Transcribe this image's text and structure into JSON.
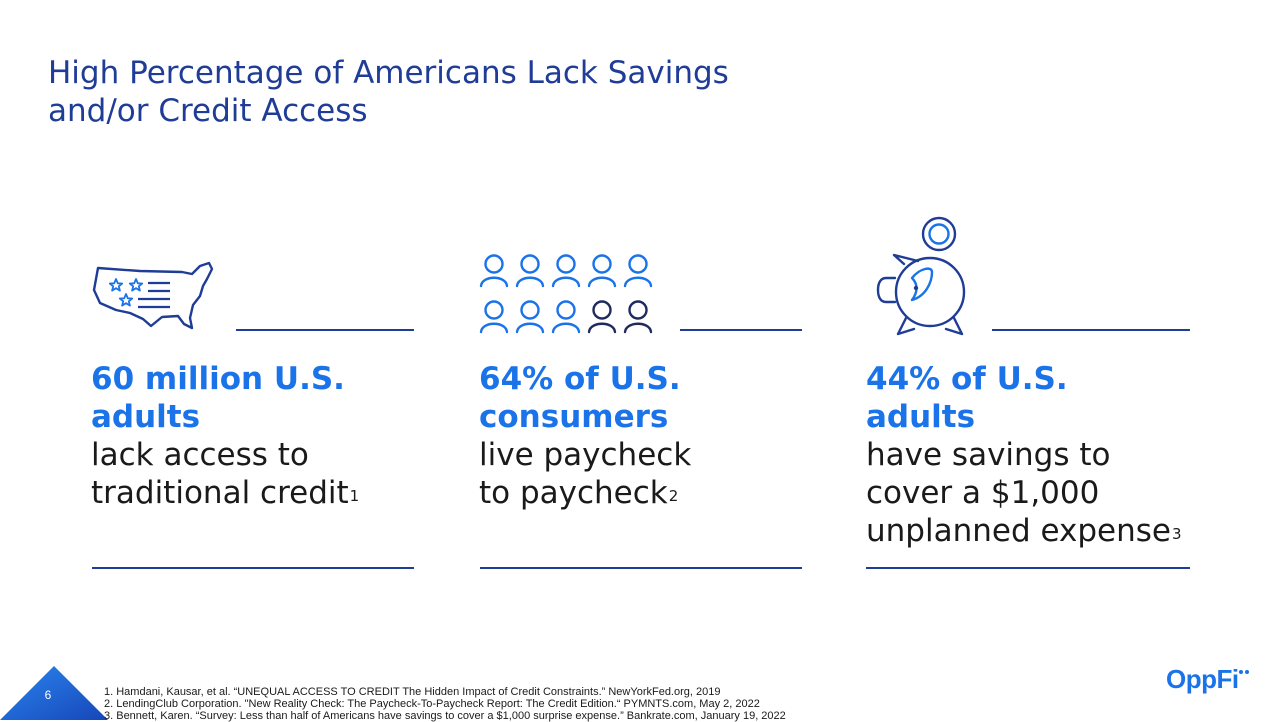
{
  "title": {
    "line1": "High Percentage of Americans Lack Savings",
    "line2": "and/or Credit Access"
  },
  "colors": {
    "navy": "#1f3c96",
    "accent": "#1a73e8",
    "text": "#1a1a1a"
  },
  "stats": [
    {
      "icon": "us-map-stars-icon",
      "highlight": [
        "60 million U.S.",
        "adults"
      ],
      "body": [
        "lack access to",
        "traditional credit"
      ],
      "footnote_ref": "1"
    },
    {
      "icon": "people-group-icon",
      "highlight": [
        "64% of U.S.",
        "consumers"
      ],
      "body": [
        "live paycheck",
        "to paycheck"
      ],
      "footnote_ref": "2"
    },
    {
      "icon": "piggy-bank-coin-icon",
      "highlight": [
        "44% of U.S.",
        "adults"
      ],
      "body": [
        "have savings to",
        "cover a $1,000",
        "unplanned expense"
      ],
      "footnote_ref": "3"
    }
  ],
  "footnotes": [
    "1. Hamdani, Kausar, et al. “UNEQUAL ACCESS TO CREDIT The Hidden Impact of Credit Constraints.” NewYorkFed.org, 2019",
    "2. LendingClub Corporation. \"New Reality Check: The Paycheck-To-Paycheck Report: The Credit Edition.“ PYMNTS.com, May 2, 2022",
    "3. Bennett, Karen. “Survey: Less than half of Americans have savings to cover a $1,000 surprise expense.” Bankrate.com, January 19, 2022"
  ],
  "page_number": "6",
  "logo": {
    "text": "OppFi"
  }
}
